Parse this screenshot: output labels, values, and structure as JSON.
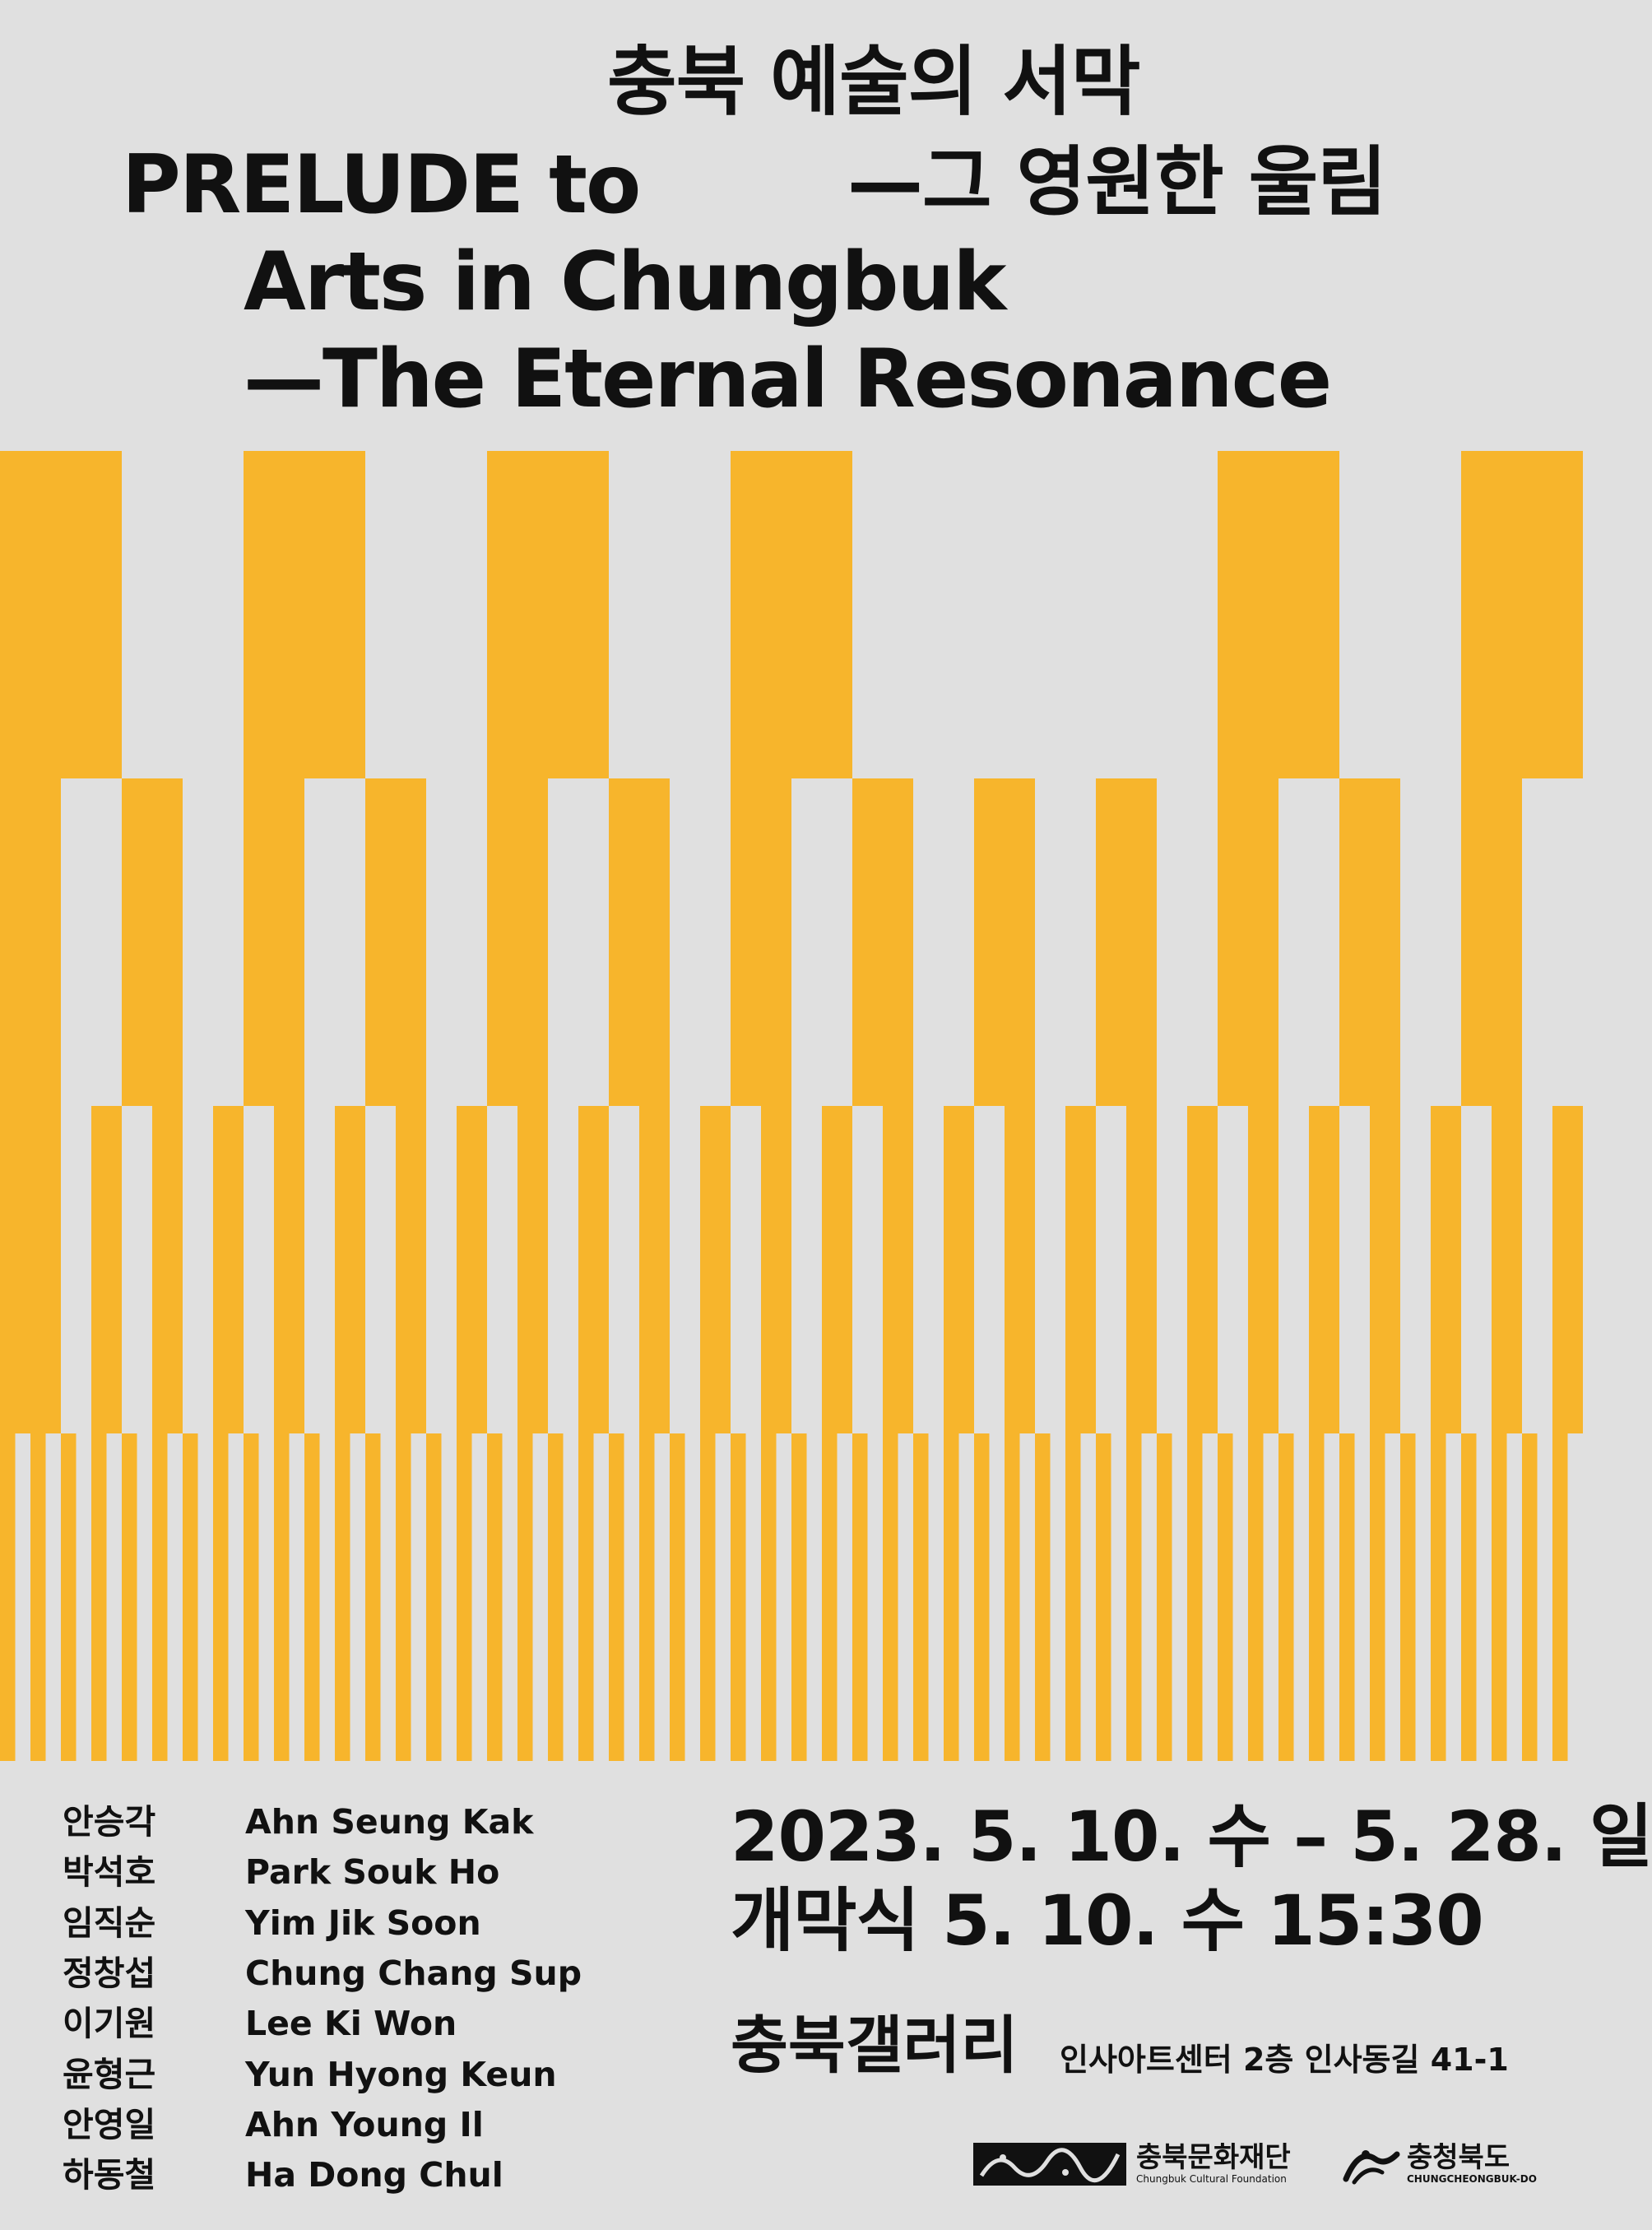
{
  "title": {
    "en_line1": "PRELUDE to",
    "en_line2": "Arts in Chungbuk",
    "en_line3": "—The Eternal Resonance",
    "ko_line1": "충북 예술의 서막",
    "ko_line2": "—그 영원한 울림"
  },
  "colors": {
    "background": "#e0e0e0",
    "accent": "#f7b52c",
    "text": "#111111"
  },
  "artists": [
    {
      "ko": "안승각",
      "en": "Ahn Seung Kak"
    },
    {
      "ko": "박석호",
      "en": "Park Souk Ho"
    },
    {
      "ko": "임직순",
      "en": "Yim Jik Soon"
    },
    {
      "ko": "정창섭",
      "en": "Chung Chang Sup"
    },
    {
      "ko": "이기원",
      "en": "Lee Ki Won"
    },
    {
      "ko": "윤형근",
      "en": "Yun Hyong Keun"
    },
    {
      "ko": "안영일",
      "en": "Ahn Young Il"
    },
    {
      "ko": "하동철",
      "en": "Ha Dong Chul"
    }
  ],
  "event": {
    "period": "2023. 5. 10. 수 – 5. 28. 일",
    "opening": "개막식  5. 10. 수  15:30",
    "venue": "충북갤러리",
    "address": "인사아트센터 2층 인사동길 41-1"
  },
  "logos": {
    "foundation_name": "충북문화재단",
    "foundation_sub": "Chungbuk Cultural Foundation",
    "province_name": "충청북도",
    "province_sub": "CHUNGCHEONGBUK-DO",
    "foundation_icon": "foundation-mark-icon",
    "province_icon": "province-mark-icon"
  }
}
